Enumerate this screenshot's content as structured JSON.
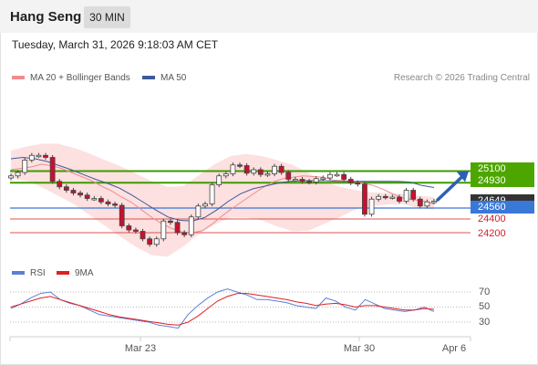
{
  "header": {
    "title": "Hang Seng",
    "timeframe": "30 MIN"
  },
  "datetime": "Tuesday, March 31, 2026 9:18:03 AM CET",
  "copyright": "Research © 2026 Trading Central",
  "legend": [
    {
      "label": "MA 20 + Bollinger Bands",
      "color": "#f08c8c"
    },
    {
      "label": "MA 50",
      "color": "#3d5a99"
    }
  ],
  "rsi_legend": [
    {
      "label": "RSI",
      "color": "#5b7fd6"
    },
    {
      "label": "9MA",
      "color": "#e02020"
    }
  ],
  "price_labels": {
    "r1": "25100",
    "r2": "24930",
    "last": "24649",
    "pivot": "24560",
    "s1": "24400",
    "s2": "24200"
  },
  "rsi_ticks": [
    "70",
    "50",
    "30"
  ],
  "x_ticks": [
    "Mar 23",
    "Mar 30",
    "Apr 6"
  ],
  "colors": {
    "resistance": "#3e9a00",
    "pivot": "#3a78d8",
    "support": "#e05050",
    "bull": "#ffffff",
    "bear": "#c8102e",
    "band": "#fde0e0",
    "arrow": "#2f5fb3"
  },
  "chart_data": [
    {
      "type": "candlestick",
      "title": "Hang Seng",
      "timeframe": "30 MIN",
      "ylim": [
        24000,
        25500
      ],
      "levels": {
        "resistance": [
          25100,
          24930
        ],
        "pivot": 24560,
        "support": [
          24400,
          24200
        ],
        "last": 24649
      },
      "ohlc_close": [
        25030,
        25080,
        25260,
        25330,
        25330,
        25300,
        24950,
        24870,
        24820,
        24780,
        24750,
        24700,
        24700,
        24650,
        24620,
        24600,
        24300,
        24240,
        24220,
        24110,
        24030,
        24110,
        24370,
        24350,
        24200,
        24170,
        24430,
        24590,
        24620,
        24900,
        25030,
        25060,
        25190,
        25180,
        25070,
        25120,
        25050,
        25060,
        25170,
        25080,
        24980,
        24980,
        24950,
        24940,
        24990,
        25000,
        25050,
        25050,
        24980,
        24930,
        24910,
        24470,
        24690,
        24730,
        24720,
        24720,
        24660,
        24820,
        24690,
        24590,
        24650,
        24660
      ],
      "ma20": [
        25120,
        25140,
        25160,
        25200,
        25180,
        25140,
        25080,
        25020,
        24960,
        24880,
        24810,
        24720,
        24640,
        24530,
        24420,
        24330,
        24260,
        24210,
        24200,
        24230,
        24330,
        24450,
        24560,
        24660,
        24760,
        24860,
        24940,
        24990,
        25010,
        25030,
        25020,
        25010,
        24970,
        24960,
        24950,
        24920,
        24890,
        24830,
        24760,
        24700,
        24680,
        24660,
        24620
      ],
      "ma50": [
        25280,
        25300,
        25280,
        25240,
        25180,
        25120,
        25050,
        24980,
        24920,
        24850,
        24750,
        24640,
        24530,
        24430,
        24380,
        24370,
        24420,
        24530,
        24660,
        24770,
        24840,
        24880,
        24920,
        24950,
        24960,
        24960,
        24960,
        24950,
        24950,
        24950,
        24950,
        24950,
        24950,
        24940,
        24890,
        24860
      ],
      "bollinger_upper": [
        25400,
        25460,
        25500,
        25500,
        25440,
        25360,
        25260,
        25170,
        25060,
        24950,
        24870,
        24880,
        25040,
        25200,
        25320,
        25350,
        25320,
        25260,
        25190,
        25070,
        24950,
        24870,
        24820,
        24790,
        24780,
        24770,
        24740,
        24720
      ],
      "bollinger_lower": [
        24990,
        24960,
        24860,
        24740,
        24620,
        24460,
        24300,
        24140,
        23990,
        23870,
        23850,
        24000,
        24180,
        24320,
        24420,
        24420,
        24380,
        24290,
        24220,
        24230,
        24330,
        24430,
        24540,
        24590,
        24610,
        24620,
        24560,
        24540
      ],
      "projection": {
        "from": 24680,
        "to": 25100
      }
    },
    {
      "type": "line",
      "title": "RSI",
      "ylim": [
        20,
        80
      ],
      "reference_lines": [
        70,
        50,
        30
      ],
      "series": [
        {
          "name": "RSI",
          "values": [
            48,
            54,
            62,
            68,
            70,
            60,
            55,
            52,
            46,
            40,
            38,
            36,
            34,
            32,
            30,
            26,
            24,
            22,
            40,
            52,
            62,
            70,
            74,
            70,
            66,
            60,
            60,
            58,
            56,
            52,
            50,
            48,
            62,
            58,
            50,
            46,
            60,
            54,
            48,
            46,
            44,
            46,
            50,
            44
          ]
        },
        {
          "name": "9MA",
          "values": [
            50,
            54,
            58,
            62,
            64,
            60,
            56,
            52,
            48,
            44,
            40,
            37,
            35,
            33,
            31,
            29,
            27,
            26,
            30,
            38,
            48,
            58,
            64,
            68,
            68,
            66,
            64,
            62,
            60,
            57,
            55,
            52,
            54,
            55,
            53,
            50,
            52,
            52,
            50,
            48,
            46,
            46,
            48,
            47
          ]
        }
      ]
    }
  ]
}
